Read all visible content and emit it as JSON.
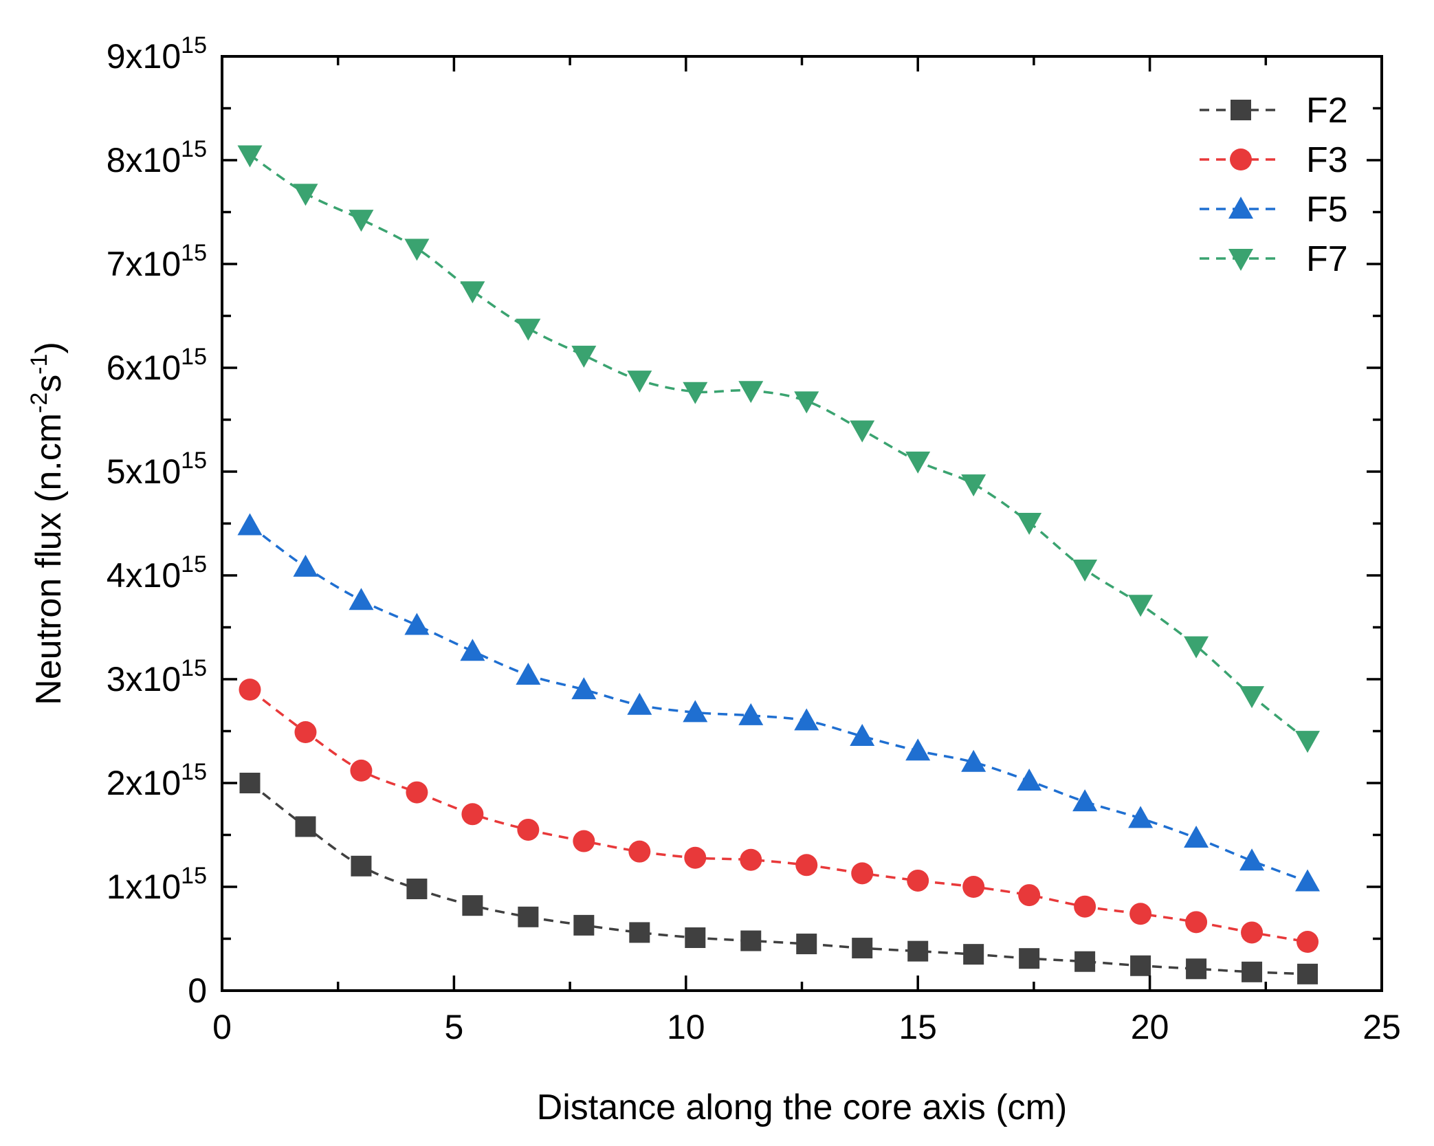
{
  "chart_data": {
    "type": "line",
    "xlabel": "Distance along the core axis (cm)",
    "ylabel": "Neutron flux (n.cm-2s-1)",
    "ylabel_parts": {
      "base": "Neutron flux (n.cm",
      "sup1": "-2",
      "mid": "s",
      "sup2": "-1",
      "end": ")"
    },
    "xlim": [
      0,
      25
    ],
    "ylim": [
      0,
      9000000000000000.0
    ],
    "x_ticks": [
      "0",
      "5",
      "10",
      "15",
      "20",
      "25"
    ],
    "y_ticks": [
      {
        "base": "0",
        "exp": ""
      },
      {
        "base": "1x10",
        "exp": "15"
      },
      {
        "base": "2x10",
        "exp": "15"
      },
      {
        "base": "3x10",
        "exp": "15"
      },
      {
        "base": "4x10",
        "exp": "15"
      },
      {
        "base": "5x10",
        "exp": "15"
      },
      {
        "base": "6x10",
        "exp": "15"
      },
      {
        "base": "7x10",
        "exp": "15"
      },
      {
        "base": "8x10",
        "exp": "15"
      },
      {
        "base": "9x10",
        "exp": "15"
      }
    ],
    "legend_position": "top-right",
    "x": [
      0.6,
      1.8,
      3.0,
      4.2,
      5.4,
      6.6,
      7.8,
      9.0,
      10.2,
      11.4,
      12.6,
      13.8,
      15.0,
      16.2,
      17.4,
      18.6,
      19.8,
      21.0,
      22.2,
      23.4
    ],
    "series": [
      {
        "name": "F2",
        "color": "#404040",
        "marker": "square",
        "values": [
          2000000000000000.0,
          1580000000000000.0,
          1200000000000000.0,
          980000000000000.0,
          820000000000000.0,
          710000000000000.0,
          630000000000000.0,
          560000000000000.0,
          510000000000000.0,
          480000000000000.0,
          450000000000000.0,
          410000000000000.0,
          380000000000000.0,
          350000000000000.0,
          310000000000000.0,
          280000000000000.0,
          240000000000000.0,
          210000000000000.0,
          180000000000000.0,
          160000000000000.0
        ]
      },
      {
        "name": "F3",
        "color": "#e8393a",
        "marker": "circle",
        "values": [
          2900000000000000.0,
          2490000000000000.0,
          2120000000000000.0,
          1910000000000000.0,
          1700000000000000.0,
          1550000000000000.0,
          1440000000000000.0,
          1340000000000000.0,
          1280000000000000.0,
          1260000000000000.0,
          1210000000000000.0,
          1130000000000000.0,
          1060000000000000.0,
          1000000000000000.0,
          920000000000000.0,
          810000000000000.0,
          740000000000000.0,
          660000000000000.0,
          560000000000000.0,
          470000000000000.0
        ]
      },
      {
        "name": "F5",
        "color": "#1f6fd1",
        "marker": "triangle-up",
        "values": [
          4480000000000000.0,
          4080000000000000.0,
          3760000000000000.0,
          3520000000000000.0,
          3270000000000000.0,
          3040000000000000.0,
          2900000000000000.0,
          2750000000000000.0,
          2680000000000000.0,
          2650000000000000.0,
          2600000000000000.0,
          2450000000000000.0,
          2310000000000000.0,
          2200000000000000.0,
          2020000000000000.0,
          1820000000000000.0,
          1660000000000000.0,
          1470000000000000.0,
          1250000000000000.0,
          1050000000000000.0
        ]
      },
      {
        "name": "F7",
        "color": "#3aa370",
        "marker": "triangle-down",
        "values": [
          8050000000000000.0,
          7680000000000000.0,
          7430000000000000.0,
          7150000000000000.0,
          6740000000000000.0,
          6380000000000000.0,
          6120000000000000.0,
          5880000000000000.0,
          5770000000000000.0,
          5780000000000000.0,
          5680000000000000.0,
          5400000000000000.0,
          5100000000000000.0,
          4880000000000000.0,
          4510000000000000.0,
          4060000000000000.0,
          3720000000000000.0,
          3320000000000000.0,
          2840000000000000.0,
          2410000000000000.0
        ]
      }
    ]
  }
}
